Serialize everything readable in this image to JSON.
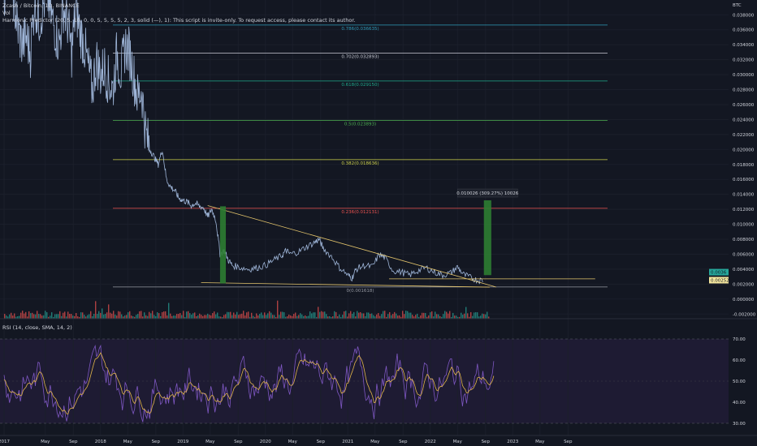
{
  "header": {
    "title": "Zcash / Bitcoin, 1D, BINANCE",
    "vol_label": "Vol",
    "indicator": "Harmonic Predictor (20, 5, 10, 0, 0, 5, 5, 5, 5, 2, 3, solid (—), 1): This script is invite-only. To request access, please contact its author."
  },
  "rsi": {
    "label": "RSI (14, close, SMA, 14, 2)",
    "ticks": [
      30,
      40,
      50,
      60,
      70
    ],
    "tick_labels": [
      "30.00",
      "40.00",
      "50.00",
      "60.00",
      "70.00"
    ],
    "bands": [
      30,
      70
    ]
  },
  "colors": {
    "background": "#131722",
    "price_line": "#9fb6d9",
    "rsi_line": "#7e57c2",
    "rsi_signal": "#e0b44a",
    "volume_up": "#26a69a",
    "volume_down": "#ef5350",
    "trend_line": "#e3c46b",
    "target_box": "#2e7d32",
    "measure_text_bg": "#131722"
  },
  "chart_data": [
    {
      "type": "line",
      "title": "Zcash / Bitcoin, 1D, BINANCE",
      "currency": "BTC",
      "ylim": [
        -0.002,
        0.039
      ],
      "y_ticks": [
        -0.002,
        0,
        0.002,
        0.004,
        0.006,
        0.008,
        0.01,
        0.012,
        0.014,
        0.016,
        0.018,
        0.02,
        0.022,
        0.024,
        0.026,
        0.028,
        0.03,
        0.032,
        0.034,
        0.036,
        0.038
      ],
      "y_tick_labels": [
        "-0.002000",
        "0.000000",
        "0.002000",
        "0.004000",
        "0.006000",
        "0.008000",
        "0.010000",
        "0.012000",
        "0.014000",
        "0.016000",
        "0.018000",
        "0.020000",
        "0.022000",
        "0.024000",
        "0.026000",
        "0.028000",
        "0.030000",
        "0.032000",
        "0.034000",
        "0.036000",
        "0.038000"
      ],
      "x_ticks": [
        {
          "t": 2016.83,
          "label": "2017"
        },
        {
          "t": 2017.33,
          "label": "May"
        },
        {
          "t": 2017.67,
          "label": "Sep"
        },
        {
          "t": 2018.0,
          "label": "2018"
        },
        {
          "t": 2018.33,
          "label": "May"
        },
        {
          "t": 2018.67,
          "label": "Sep"
        },
        {
          "t": 2019.0,
          "label": "2019"
        },
        {
          "t": 2019.33,
          "label": "May"
        },
        {
          "t": 2019.67,
          "label": "Sep"
        },
        {
          "t": 2020.0,
          "label": "2020"
        },
        {
          "t": 2020.33,
          "label": "May"
        },
        {
          "t": 2020.67,
          "label": "Sep"
        },
        {
          "t": 2021.0,
          "label": "2021"
        },
        {
          "t": 2021.33,
          "label": "May"
        },
        {
          "t": 2021.67,
          "label": "Sep"
        },
        {
          "t": 2022.0,
          "label": "2022"
        },
        {
          "t": 2022.33,
          "label": "May"
        },
        {
          "t": 2022.67,
          "label": "Sep"
        },
        {
          "t": 2023.0,
          "label": "2023"
        },
        {
          "t": 2023.33,
          "label": "May"
        },
        {
          "t": 2023.67,
          "label": "Sep"
        }
      ],
      "series": [
        {
          "x": [
            2016.83,
            2016.87,
            2016.92,
            2016.96,
            2017.0,
            2017.05,
            2017.1,
            2017.15,
            2017.2,
            2017.25,
            2017.3,
            2017.35,
            2017.4,
            2017.45,
            2017.5,
            2017.55,
            2017.6,
            2017.65,
            2017.7,
            2017.75,
            2017.8,
            2017.85,
            2017.9,
            2017.95,
            2018.0,
            2018.05,
            2018.1,
            2018.15,
            2018.2,
            2018.25,
            2018.3,
            2018.35,
            2018.4,
            2018.45,
            2018.5,
            2018.55,
            2018.6,
            2018.65,
            2018.7,
            2018.75,
            2018.8,
            2018.85,
            2018.9,
            2018.95,
            2019.0,
            2019.05,
            2019.1,
            2019.15,
            2019.2,
            2019.25,
            2019.3,
            2019.35,
            2019.4,
            2019.45,
            2019.5,
            2019.55,
            2019.6,
            2019.7,
            2019.8,
            2019.9,
            2020.0,
            2020.1,
            2020.2,
            2020.25,
            2020.3,
            2020.4,
            2020.5,
            2020.6,
            2020.65,
            2020.7,
            2020.8,
            2020.9,
            2021.0,
            2021.05,
            2021.1,
            2021.2,
            2021.3,
            2021.38,
            2021.45,
            2021.55,
            2021.65,
            2021.75,
            2021.85,
            2021.95,
            2022.05,
            2022.15,
            2022.25,
            2022.33,
            2022.4,
            2022.5,
            2022.58,
            2022.65
          ],
          "values": [
            0.04,
            0.045,
            0.043,
            0.039,
            0.036,
            0.034,
            0.035,
            0.033,
            0.04,
            0.037,
            0.039,
            0.041,
            0.038,
            0.036,
            0.034,
            0.039,
            0.037,
            0.033,
            0.039,
            0.036,
            0.034,
            0.031,
            0.028,
            0.032,
            0.03,
            0.031,
            0.029,
            0.028,
            0.033,
            0.03,
            0.034,
            0.033,
            0.03,
            0.027,
            0.028,
            0.022,
            0.02,
            0.019,
            0.018,
            0.02,
            0.016,
            0.015,
            0.0145,
            0.0135,
            0.0132,
            0.013,
            0.0125,
            0.0128,
            0.0124,
            0.0122,
            0.011,
            0.012,
            0.0105,
            0.006,
            0.0065,
            0.0052,
            0.0045,
            0.0042,
            0.004,
            0.0042,
            0.0045,
            0.0052,
            0.0058,
            0.0065,
            0.006,
            0.0063,
            0.007,
            0.0076,
            0.008,
            0.0068,
            0.0057,
            0.0042,
            0.0032,
            0.0028,
            0.004,
            0.0045,
            0.0043,
            0.006,
            0.0055,
            0.0038,
            0.0036,
            0.0032,
            0.0038,
            0.0042,
            0.0036,
            0.0032,
            0.0035,
            0.0043,
            0.0033,
            0.0028,
            0.0025,
            0.0026
          ]
        }
      ],
      "fib_levels": [
        {
          "ratio": "0.786",
          "price": 0.036635,
          "label": "0.786(0.036635)",
          "color": "#2e9bb8"
        },
        {
          "ratio": "0.702",
          "price": 0.032893,
          "label": "0.702(0.032893)",
          "color": "#c9ccd6"
        },
        {
          "ratio": "0.618",
          "price": 0.02915,
          "label": "0.618(0.029150)",
          "color": "#1ea88a"
        },
        {
          "ratio": "0.5",
          "price": 0.023893,
          "label": "0.5(0.023893)",
          "color": "#4caf50"
        },
        {
          "ratio": "0.382",
          "price": 0.018636,
          "label": "0.382(0.018636)",
          "color": "#cdd14b"
        },
        {
          "ratio": "0.236",
          "price": 0.012131,
          "label": "0.236(0.012131)",
          "color": "#ef5350"
        },
        {
          "ratio": "0",
          "price": 0.001618,
          "label": "0(0.001618)",
          "color": "#9598a1"
        }
      ],
      "trendlines": [
        {
          "name": "descending-resistance",
          "from": [
            2019.3,
            0.0125
          ],
          "to": [
            2022.8,
            0.0016
          ]
        },
        {
          "name": "horizontal-support",
          "from": [
            2019.22,
            0.0022
          ],
          "to": [
            2022.72,
            0.0016
          ]
        },
        {
          "name": "current-price-line",
          "from": [
            2021.5,
            0.0027
          ],
          "to": [
            2024.0,
            0.0027
          ]
        }
      ],
      "measure_boxes": [
        {
          "from": [
            2019.45,
            0.0021
          ],
          "to": [
            2019.52,
            0.0124
          ]
        },
        {
          "from": [
            2022.65,
            0.0032
          ],
          "to": [
            2022.74,
            0.0132
          ],
          "label": "0.010026 (309.27%) 10026"
        }
      ],
      "price_labels": [
        {
          "price": 0.0036,
          "text": "0.0036"
        },
        {
          "price": 0.002525,
          "text": "0.002525"
        }
      ]
    },
    {
      "type": "bar",
      "name": "Vol",
      "seed_values_description": "",
      "ylim": [
        0,
        1
      ]
    },
    {
      "type": "line",
      "name": "RSI",
      "title": "RSI (14, close, SMA, 14, 2)",
      "ylim": [
        27,
        76
      ],
      "x_range": [
        2016.83,
        2022.77
      ],
      "bands": [
        30,
        70
      ],
      "series": [
        {
          "name": "RSI",
          "samples": 180
        },
        {
          "name": "SMA",
          "samples": 180
        }
      ]
    }
  ]
}
